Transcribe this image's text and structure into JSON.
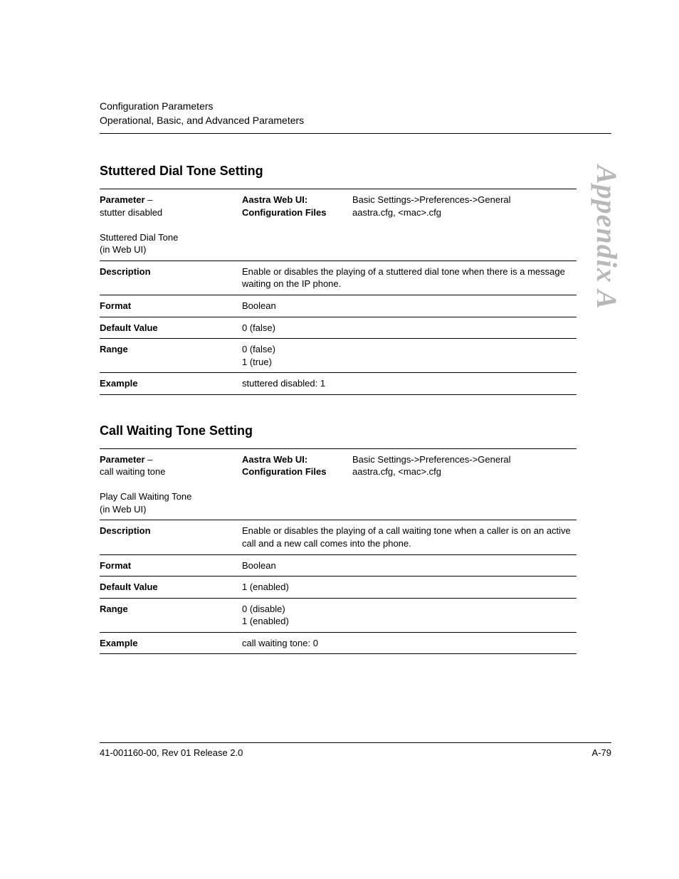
{
  "header": {
    "line1": "Configuration Parameters",
    "line2": "Operational, Basic, and Advanced Parameters"
  },
  "side_label": "Appendix A",
  "sections": [
    {
      "title": "Stuttered Dial Tone Setting",
      "param_row": {
        "label_bold": "Parameter",
        "label_dash": " – ",
        "param_name": "stutter disabled",
        "web_ui_note": "Stuttered Dial Tone\n(in Web UI)",
        "mid_bold1": "Aastra Web UI:",
        "mid_bold2": "Configuration Files",
        "right1": "Basic Settings->Preferences->General",
        "right2": "aastra.cfg, <mac>.cfg"
      },
      "rows": [
        {
          "label": "Description",
          "value": "Enable or disables the playing of a stuttered dial tone when there is a message waiting on the IP phone."
        },
        {
          "label": "Format",
          "value": "Boolean"
        },
        {
          "label": "Default Value",
          "value": "0 (false)"
        },
        {
          "label": "Range",
          "value": "0 (false)\n1 (true)"
        },
        {
          "label": "Example",
          "value": "stuttered disabled: 1"
        }
      ]
    },
    {
      "title": "Call Waiting Tone Setting",
      "param_row": {
        "label_bold": "Parameter",
        "label_dash": " – ",
        "param_name": "call waiting tone",
        "web_ui_note": "Play Call Waiting Tone\n(in Web UI)",
        "mid_bold1": "Aastra Web UI:",
        "mid_bold2": "Configuration Files",
        "right1": "Basic Settings->Preferences->General",
        "right2": "aastra.cfg, <mac>.cfg"
      },
      "rows": [
        {
          "label": "Description",
          "value": "Enable or disables the playing of a call waiting tone when a caller is on an active call and a new call comes into the phone."
        },
        {
          "label": "Format",
          "value": "Boolean"
        },
        {
          "label": "Default Value",
          "value": "1 (enabled)"
        },
        {
          "label": "Range",
          "value": "0 (disable)\n1 (enabled)"
        },
        {
          "label": "Example",
          "value": "call waiting tone: 0"
        }
      ]
    }
  ],
  "footer": {
    "left": "41-001160-00, Rev 01  Release 2.0",
    "right": "A-79"
  }
}
